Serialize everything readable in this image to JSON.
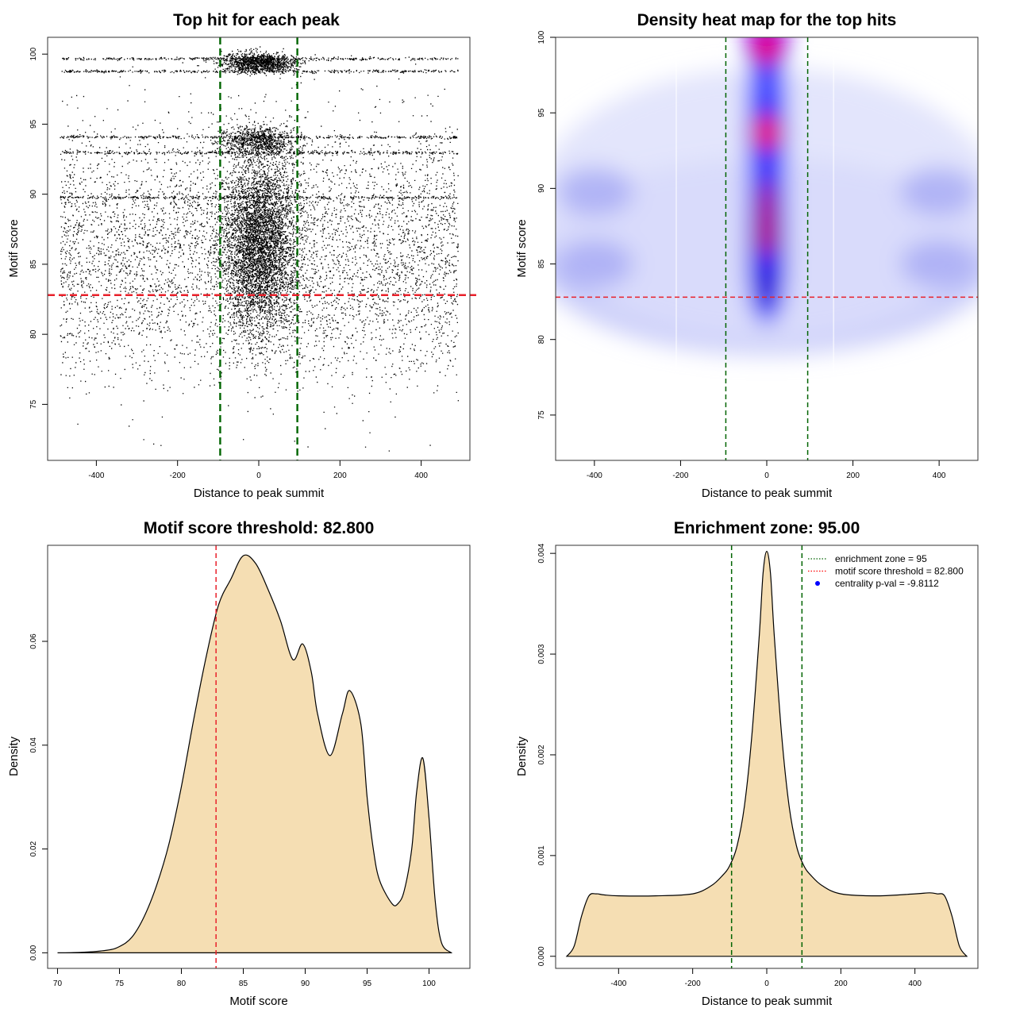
{
  "chart_data": [
    {
      "type": "scatter",
      "title": "Top hit for each peak",
      "xlabel": "Distance to peak summit",
      "ylabel": "Motif score",
      "xlim": [
        -520,
        520
      ],
      "ylim": [
        71,
        101.2
      ],
      "xticks": [
        -400,
        -200,
        0,
        200,
        400
      ],
      "yticks": [
        75,
        80,
        85,
        90,
        95,
        100
      ],
      "vlines": [
        -95,
        95
      ],
      "hline": 82.8,
      "points": {
        "x_range": [
          -490,
          490
        ],
        "background_score_range": [
          76,
          100
        ],
        "central_band_halfwidth": 95,
        "dense_score_rows": [
          89.8,
          93.0,
          94.1,
          98.8,
          99.7
        ],
        "outliers": [
          {
            "x": -260,
            "y": 72.2
          },
          {
            "x": 120,
            "y": 72.0
          },
          {
            "x": -340,
            "y": 75.0
          },
          {
            "x": 490,
            "y": 75.3
          }
        ]
      }
    },
    {
      "type": "heatmap",
      "title": "Density heat map for the top hits",
      "xlabel": "Distance to peak summit",
      "ylabel": "Motif score",
      "xlim": [
        -490,
        490
      ],
      "ylim": [
        72,
        100
      ],
      "xticks": [
        -400,
        -200,
        0,
        200,
        400
      ],
      "yticks": [
        75,
        80,
        85,
        90,
        95,
        100
      ],
      "vlines": [
        -95,
        95
      ],
      "hline": 82.8,
      "colors": [
        "#ffffff",
        "#0000ff",
        "#ff0000"
      ],
      "hotspots": [
        {
          "x": 0,
          "y": 99.4,
          "level": "max"
        },
        {
          "x": 0,
          "y": 93.7,
          "level": "max"
        },
        {
          "x": 0,
          "y": 87.0,
          "level": "high"
        },
        {
          "x": 0,
          "y": 83.5,
          "level": "medium"
        },
        {
          "x": -400,
          "y": 85.0,
          "level": "low"
        },
        {
          "x": 400,
          "y": 85.0,
          "level": "low"
        },
        {
          "x": -400,
          "y": 89.8,
          "level": "low"
        },
        {
          "x": 400,
          "y": 89.8,
          "level": "low"
        }
      ]
    },
    {
      "type": "area",
      "title": "Motif score threshold: 82.800",
      "xlabel": "Motif score",
      "ylabel": "Density",
      "xlim": [
        69.2,
        103.3
      ],
      "ylim": [
        -0.003,
        0.0785
      ],
      "xticks": [
        70,
        75,
        80,
        85,
        90,
        95,
        100
      ],
      "yticks": [
        0.0,
        0.02,
        0.04,
        0.06
      ],
      "ytick_labels": [
        "0.00",
        "0.02",
        "0.04",
        "0.06"
      ],
      "vline": 82.8,
      "fill": "#f5deb3",
      "x": [
        70,
        72,
        74,
        75,
        76,
        77,
        78,
        79,
        80,
        81,
        82,
        83,
        84,
        85,
        86,
        87,
        88,
        89,
        89.8,
        90.5,
        91,
        92,
        93,
        93.6,
        94.5,
        95,
        95.5,
        96,
        97,
        97.5,
        98,
        98.6,
        99,
        99.5,
        100,
        100.5,
        101,
        101.8
      ],
      "values": [
        0,
        0.0001,
        0.0005,
        0.0012,
        0.003,
        0.007,
        0.013,
        0.021,
        0.032,
        0.045,
        0.057,
        0.067,
        0.072,
        0.0765,
        0.075,
        0.07,
        0.064,
        0.0565,
        0.0595,
        0.054,
        0.046,
        0.038,
        0.046,
        0.0505,
        0.044,
        0.03,
        0.02,
        0.014,
        0.0095,
        0.0095,
        0.012,
        0.02,
        0.031,
        0.0375,
        0.026,
        0.01,
        0.002,
        0
      ]
    },
    {
      "type": "area",
      "title": "Enrichment zone: 95.00",
      "xlabel": "Distance to peak summit",
      "ylabel": "Density",
      "xlim": [
        -570,
        570
      ],
      "ylim": [
        -0.00012,
        0.00408
      ],
      "xticks": [
        -400,
        -200,
        0,
        200,
        400
      ],
      "yticks": [
        0.0,
        0.001,
        0.002,
        0.003,
        0.004
      ],
      "ytick_labels": [
        "0.000",
        "0.001",
        "0.002",
        "0.003",
        "0.004"
      ],
      "vlines": [
        -95,
        95
      ],
      "fill": "#f5deb3",
      "legend": [
        {
          "label": "enrichment zone = 95",
          "color": "#006400",
          "symbol": "dotted-line"
        },
        {
          "label": "motif score threshold = 82.800",
          "color": "#ff0000",
          "symbol": "dotted-line"
        },
        {
          "label": "centrality p-val = -9.8112",
          "color": "#0000ff",
          "symbol": "dot"
        }
      ],
      "legend_position": "top-right",
      "x": [
        -540,
        -520,
        -500,
        -480,
        -460,
        -440,
        -400,
        -300,
        -200,
        -150,
        -120,
        -100,
        -80,
        -60,
        -40,
        -20,
        -10,
        0,
        10,
        20,
        40,
        60,
        80,
        100,
        120,
        150,
        200,
        300,
        400,
        440,
        460,
        480,
        500,
        520,
        540
      ],
      "values": [
        0,
        0.0001,
        0.0004,
        0.0006,
        0.00062,
        0.00061,
        0.0006,
        0.0006,
        0.00062,
        0.0007,
        0.0008,
        0.0009,
        0.0011,
        0.0015,
        0.0022,
        0.0032,
        0.0038,
        0.00402,
        0.0038,
        0.0032,
        0.0022,
        0.0015,
        0.0011,
        0.0009,
        0.0008,
        0.0007,
        0.00062,
        0.0006,
        0.00062,
        0.00063,
        0.00062,
        0.0006,
        0.0004,
        0.0001,
        0
      ]
    }
  ]
}
